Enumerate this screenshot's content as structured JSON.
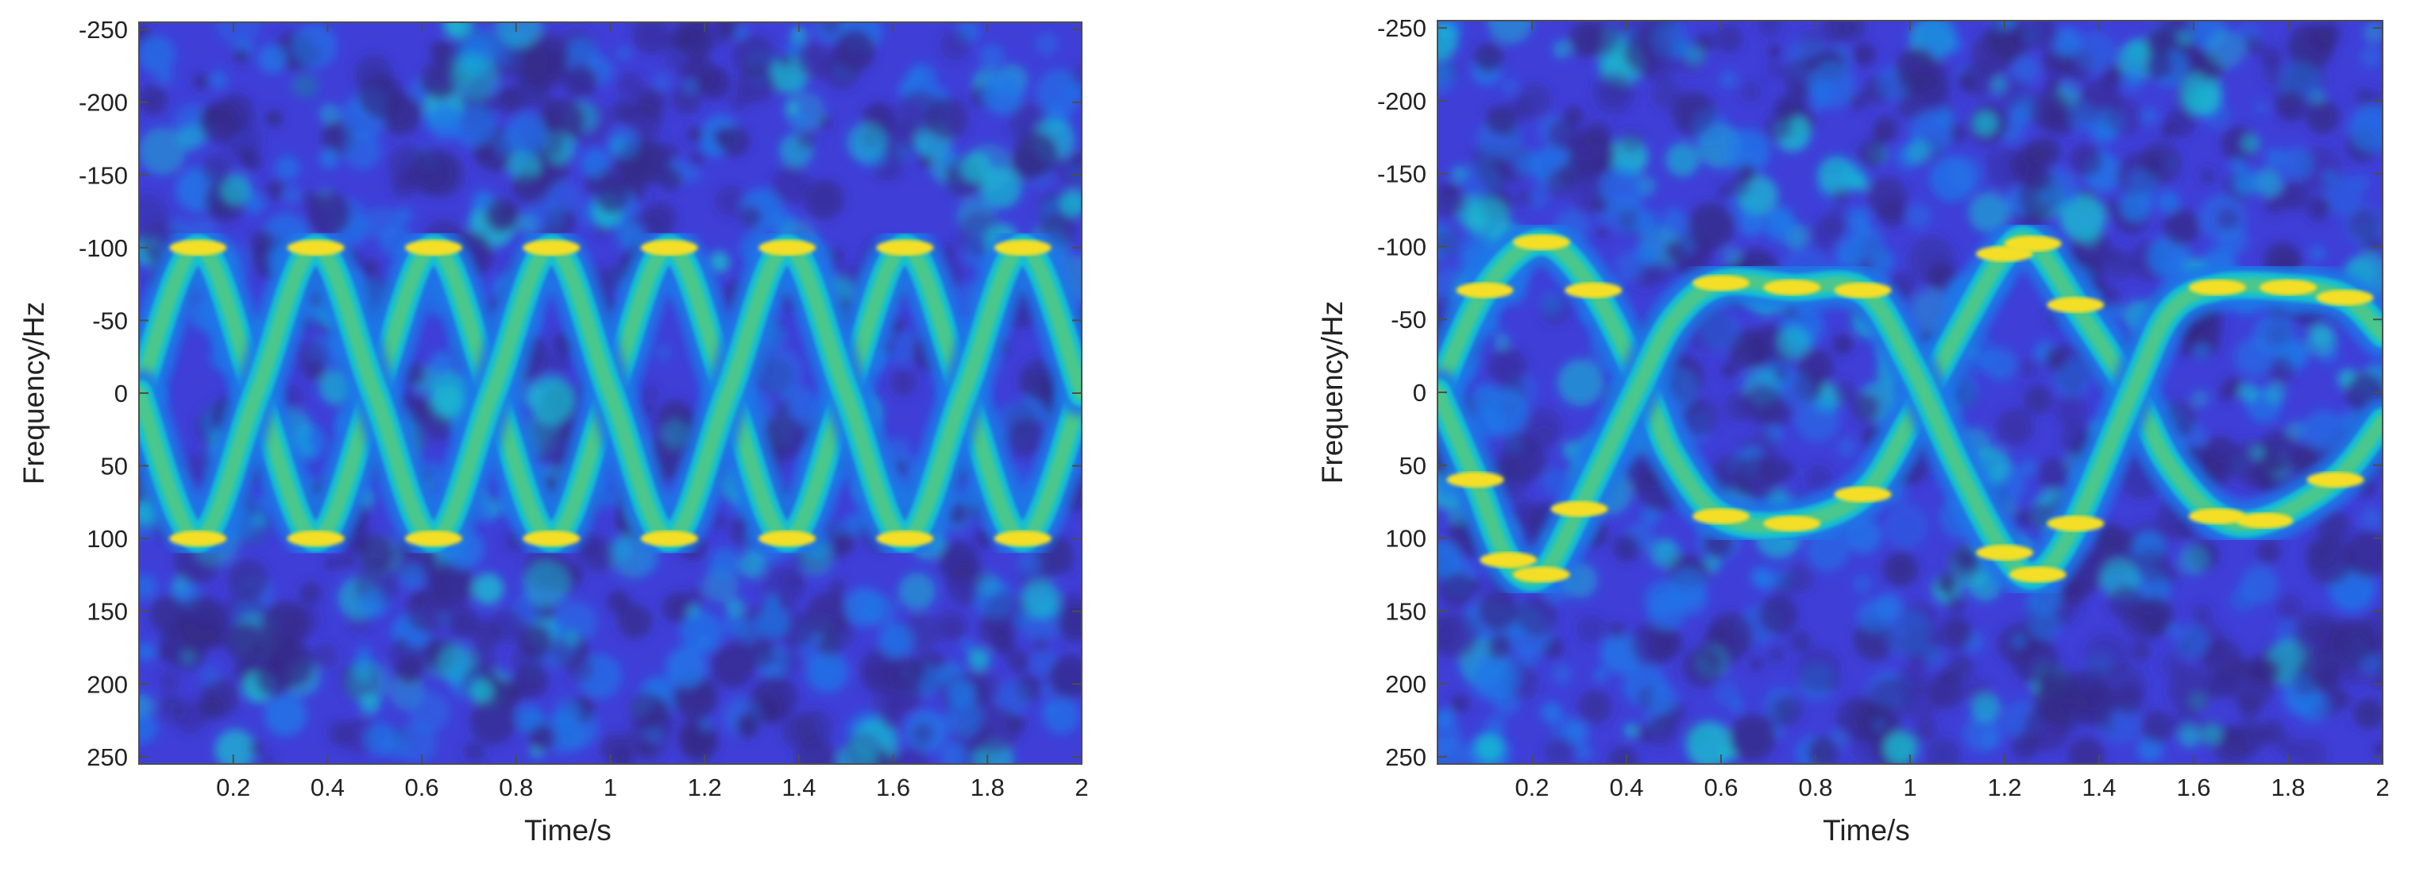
{
  "chart_data": [
    {
      "type": "heatmap",
      "title": "",
      "xlabel": "Time/s",
      "ylabel": "Frequency/Hz",
      "xlim": [
        0,
        2
      ],
      "ylim": [
        -255,
        255
      ],
      "y_axis_direction": "reversed",
      "xticks": [
        0.2,
        0.4,
        0.6,
        0.8,
        1,
        1.2,
        1.4,
        1.6,
        1.8,
        2
      ],
      "xtick_labels": [
        "0.2",
        "0.4",
        "0.6",
        "0.8",
        "1",
        "1.2",
        "1.4",
        "1.6",
        "1.8",
        "2"
      ],
      "yticks": [
        -250,
        -200,
        -150,
        -100,
        -50,
        0,
        50,
        100,
        150,
        200,
        250
      ],
      "ytick_labels": [
        "-250",
        "-200",
        "-150",
        "-100",
        "-50",
        "0",
        "50",
        "100",
        "150",
        "200",
        "250"
      ],
      "colormap": [
        "#352a87",
        "#3f3fd8",
        "#1e78e8",
        "#16c0d0",
        "#4ac78c",
        "#b8c845",
        "#f5df28",
        "#f9fb0e"
      ],
      "grid": false,
      "series": [
        {
          "values": [
            [
              0.0,
              0
            ],
            [
              0.125,
              -100
            ],
            [
              0.25,
              0
            ],
            [
              0.375,
              100
            ],
            [
              0.5,
              0
            ],
            [
              0.625,
              -100
            ],
            [
              0.75,
              0
            ],
            [
              0.875,
              100
            ],
            [
              1.0,
              0
            ],
            [
              1.125,
              -100
            ],
            [
              1.25,
              0
            ],
            [
              1.375,
              100
            ],
            [
              1.5,
              0
            ],
            [
              1.625,
              -100
            ],
            [
              1.75,
              0
            ],
            [
              1.875,
              100
            ],
            [
              2.0,
              0
            ]
          ]
        },
        {
          "values": [
            [
              0.0,
              0
            ],
            [
              0.125,
              100
            ],
            [
              0.25,
              0
            ],
            [
              0.375,
              -100
            ],
            [
              0.5,
              0
            ],
            [
              0.625,
              100
            ],
            [
              0.75,
              0
            ],
            [
              0.875,
              -100
            ],
            [
              1.0,
              0
            ],
            [
              1.125,
              100
            ],
            [
              1.25,
              0
            ],
            [
              1.375,
              -100
            ],
            [
              1.5,
              0
            ],
            [
              1.625,
              100
            ],
            [
              1.75,
              0
            ],
            [
              1.875,
              -100
            ],
            [
              2.0,
              0
            ]
          ]
        }
      ]
    },
    {
      "type": "heatmap",
      "title": "",
      "xlabel": "Time/s",
      "ylabel": "Frequency/Hz",
      "xlim": [
        0,
        2
      ],
      "ylim": [
        -255,
        255
      ],
      "y_axis_direction": "reversed",
      "xticks": [
        0.2,
        0.4,
        0.6,
        0.8,
        1,
        1.2,
        1.4,
        1.6,
        1.8,
        2
      ],
      "xtick_labels": [
        "0.2",
        "0.4",
        "0.6",
        "0.8",
        "1",
        "1.2",
        "1.4",
        "1.6",
        "1.8",
        "2"
      ],
      "yticks": [
        -250,
        -200,
        -150,
        -100,
        -50,
        0,
        50,
        100,
        150,
        200,
        250
      ],
      "ytick_labels": [
        "-250",
        "-200",
        "-150",
        "-100",
        "-50",
        "0",
        "50",
        "100",
        "150",
        "200",
        "250"
      ],
      "colormap": [
        "#352a87",
        "#3f3fd8",
        "#1e78e8",
        "#16c0d0",
        "#4ac78c",
        "#b8c845",
        "#f5df28",
        "#f9fb0e"
      ],
      "grid": false,
      "series": [
        {
          "values": [
            [
              0.0,
              0
            ],
            [
              0.1,
              -70
            ],
            [
              0.22,
              -103
            ],
            [
              0.33,
              -70
            ],
            [
              0.44,
              0
            ],
            [
              0.5,
              45
            ],
            [
              0.6,
              85
            ],
            [
              0.75,
              90
            ],
            [
              0.9,
              70
            ],
            [
              1.0,
              20
            ],
            [
              1.1,
              -40
            ],
            [
              1.2,
              -95
            ],
            [
              1.26,
              -102
            ],
            [
              1.35,
              -60
            ],
            [
              1.47,
              0
            ],
            [
              1.55,
              50
            ],
            [
              1.65,
              85
            ],
            [
              1.75,
              88
            ],
            [
              1.9,
              60
            ],
            [
              2.0,
              20
            ]
          ]
        },
        {
          "values": [
            [
              0.0,
              0
            ],
            [
              0.08,
              60
            ],
            [
              0.15,
              115
            ],
            [
              0.22,
              125
            ],
            [
              0.3,
              80
            ],
            [
              0.42,
              0
            ],
            [
              0.5,
              -50
            ],
            [
              0.6,
              -75
            ],
            [
              0.75,
              -72
            ],
            [
              0.9,
              -70
            ],
            [
              1.0,
              -20
            ],
            [
              1.1,
              50
            ],
            [
              1.2,
              110
            ],
            [
              1.27,
              125
            ],
            [
              1.35,
              90
            ],
            [
              1.47,
              0
            ],
            [
              1.55,
              -55
            ],
            [
              1.65,
              -72
            ],
            [
              1.8,
              -72
            ],
            [
              1.92,
              -65
            ],
            [
              2.0,
              -40
            ]
          ]
        }
      ]
    }
  ]
}
